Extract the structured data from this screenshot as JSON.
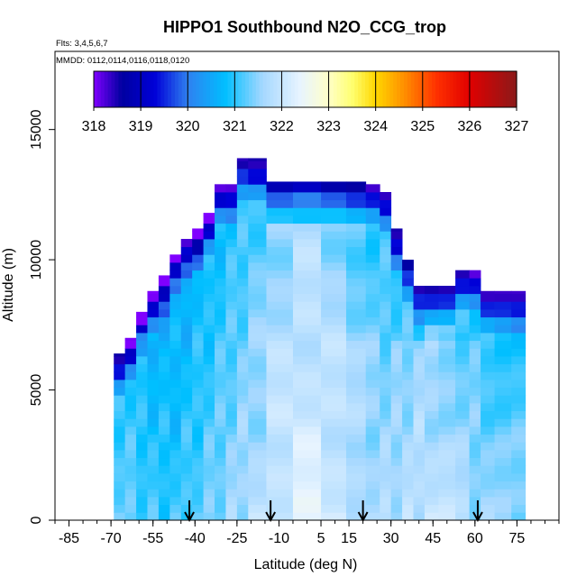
{
  "chart_data": {
    "type": "heatmap",
    "title": "HIPPO1 Southbound N2O_CCG_trop",
    "subtitle_flights": "Flts: 3,4,5,6,7",
    "subtitle_dates": "MMDD: 0112,0114,0116,0118,0120",
    "xlabel": "Latitude (deg N)",
    "ylabel": "Altitude (m)",
    "xlim": [
      -90,
      90
    ],
    "ylim": [
      0,
      18000
    ],
    "x_ticks": [
      -85,
      -70,
      -55,
      -40,
      -25,
      -10,
      5,
      15,
      30,
      45,
      60,
      75
    ],
    "y_ticks": [
      0,
      5000,
      10000,
      15000
    ],
    "colorbar": {
      "ticks": [
        318,
        319,
        320,
        321,
        322,
        323,
        324,
        325,
        326,
        327
      ],
      "colors": [
        "#8000ff",
        "#0000a0",
        "#0000d8",
        "#2f80f0",
        "#00bfff",
        "#a6d8ff",
        "#f4f8ff",
        "#ffff90",
        "#ffd700",
        "#ff9000",
        "#ff0000",
        "#c00000",
        "#8b1a1a"
      ]
    },
    "arrows_latitude": [
      -42,
      -13,
      20,
      61
    ],
    "profiles": [
      {
        "lat": -67,
        "top": 6400
      },
      {
        "lat": -63,
        "top": 7000
      },
      {
        "lat": -59,
        "top": 8000
      },
      {
        "lat": -55,
        "top": 8800
      },
      {
        "lat": -51,
        "top": 9400
      },
      {
        "lat": -47,
        "top": 10200
      },
      {
        "lat": -43,
        "top": 10800
      },
      {
        "lat": -39,
        "top": 11200
      },
      {
        "lat": -35,
        "top": 11800
      },
      {
        "lat": -31,
        "top": 12900
      },
      {
        "lat": -27,
        "top": 12900
      },
      {
        "lat": -23,
        "top": 13900
      },
      {
        "lat": -19,
        "top": 13900
      },
      {
        "lat": -10,
        "top": 13000
      },
      {
        "lat": 0,
        "top": 13000
      },
      {
        "lat": 10,
        "top": 13000
      },
      {
        "lat": 18,
        "top": 13000
      },
      {
        "lat": 24,
        "top": 12900
      },
      {
        "lat": 28,
        "top": 12600
      },
      {
        "lat": 32,
        "top": 11200
      },
      {
        "lat": 36,
        "top": 10000
      },
      {
        "lat": 40,
        "top": 9000
      },
      {
        "lat": 44,
        "top": 9000
      },
      {
        "lat": 50,
        "top": 9000
      },
      {
        "lat": 56,
        "top": 9600
      },
      {
        "lat": 60,
        "top": 9600
      },
      {
        "lat": 64,
        "top": 8800
      },
      {
        "lat": 70,
        "top": 8800
      },
      {
        "lat": 76,
        "top": 8800
      }
    ]
  }
}
